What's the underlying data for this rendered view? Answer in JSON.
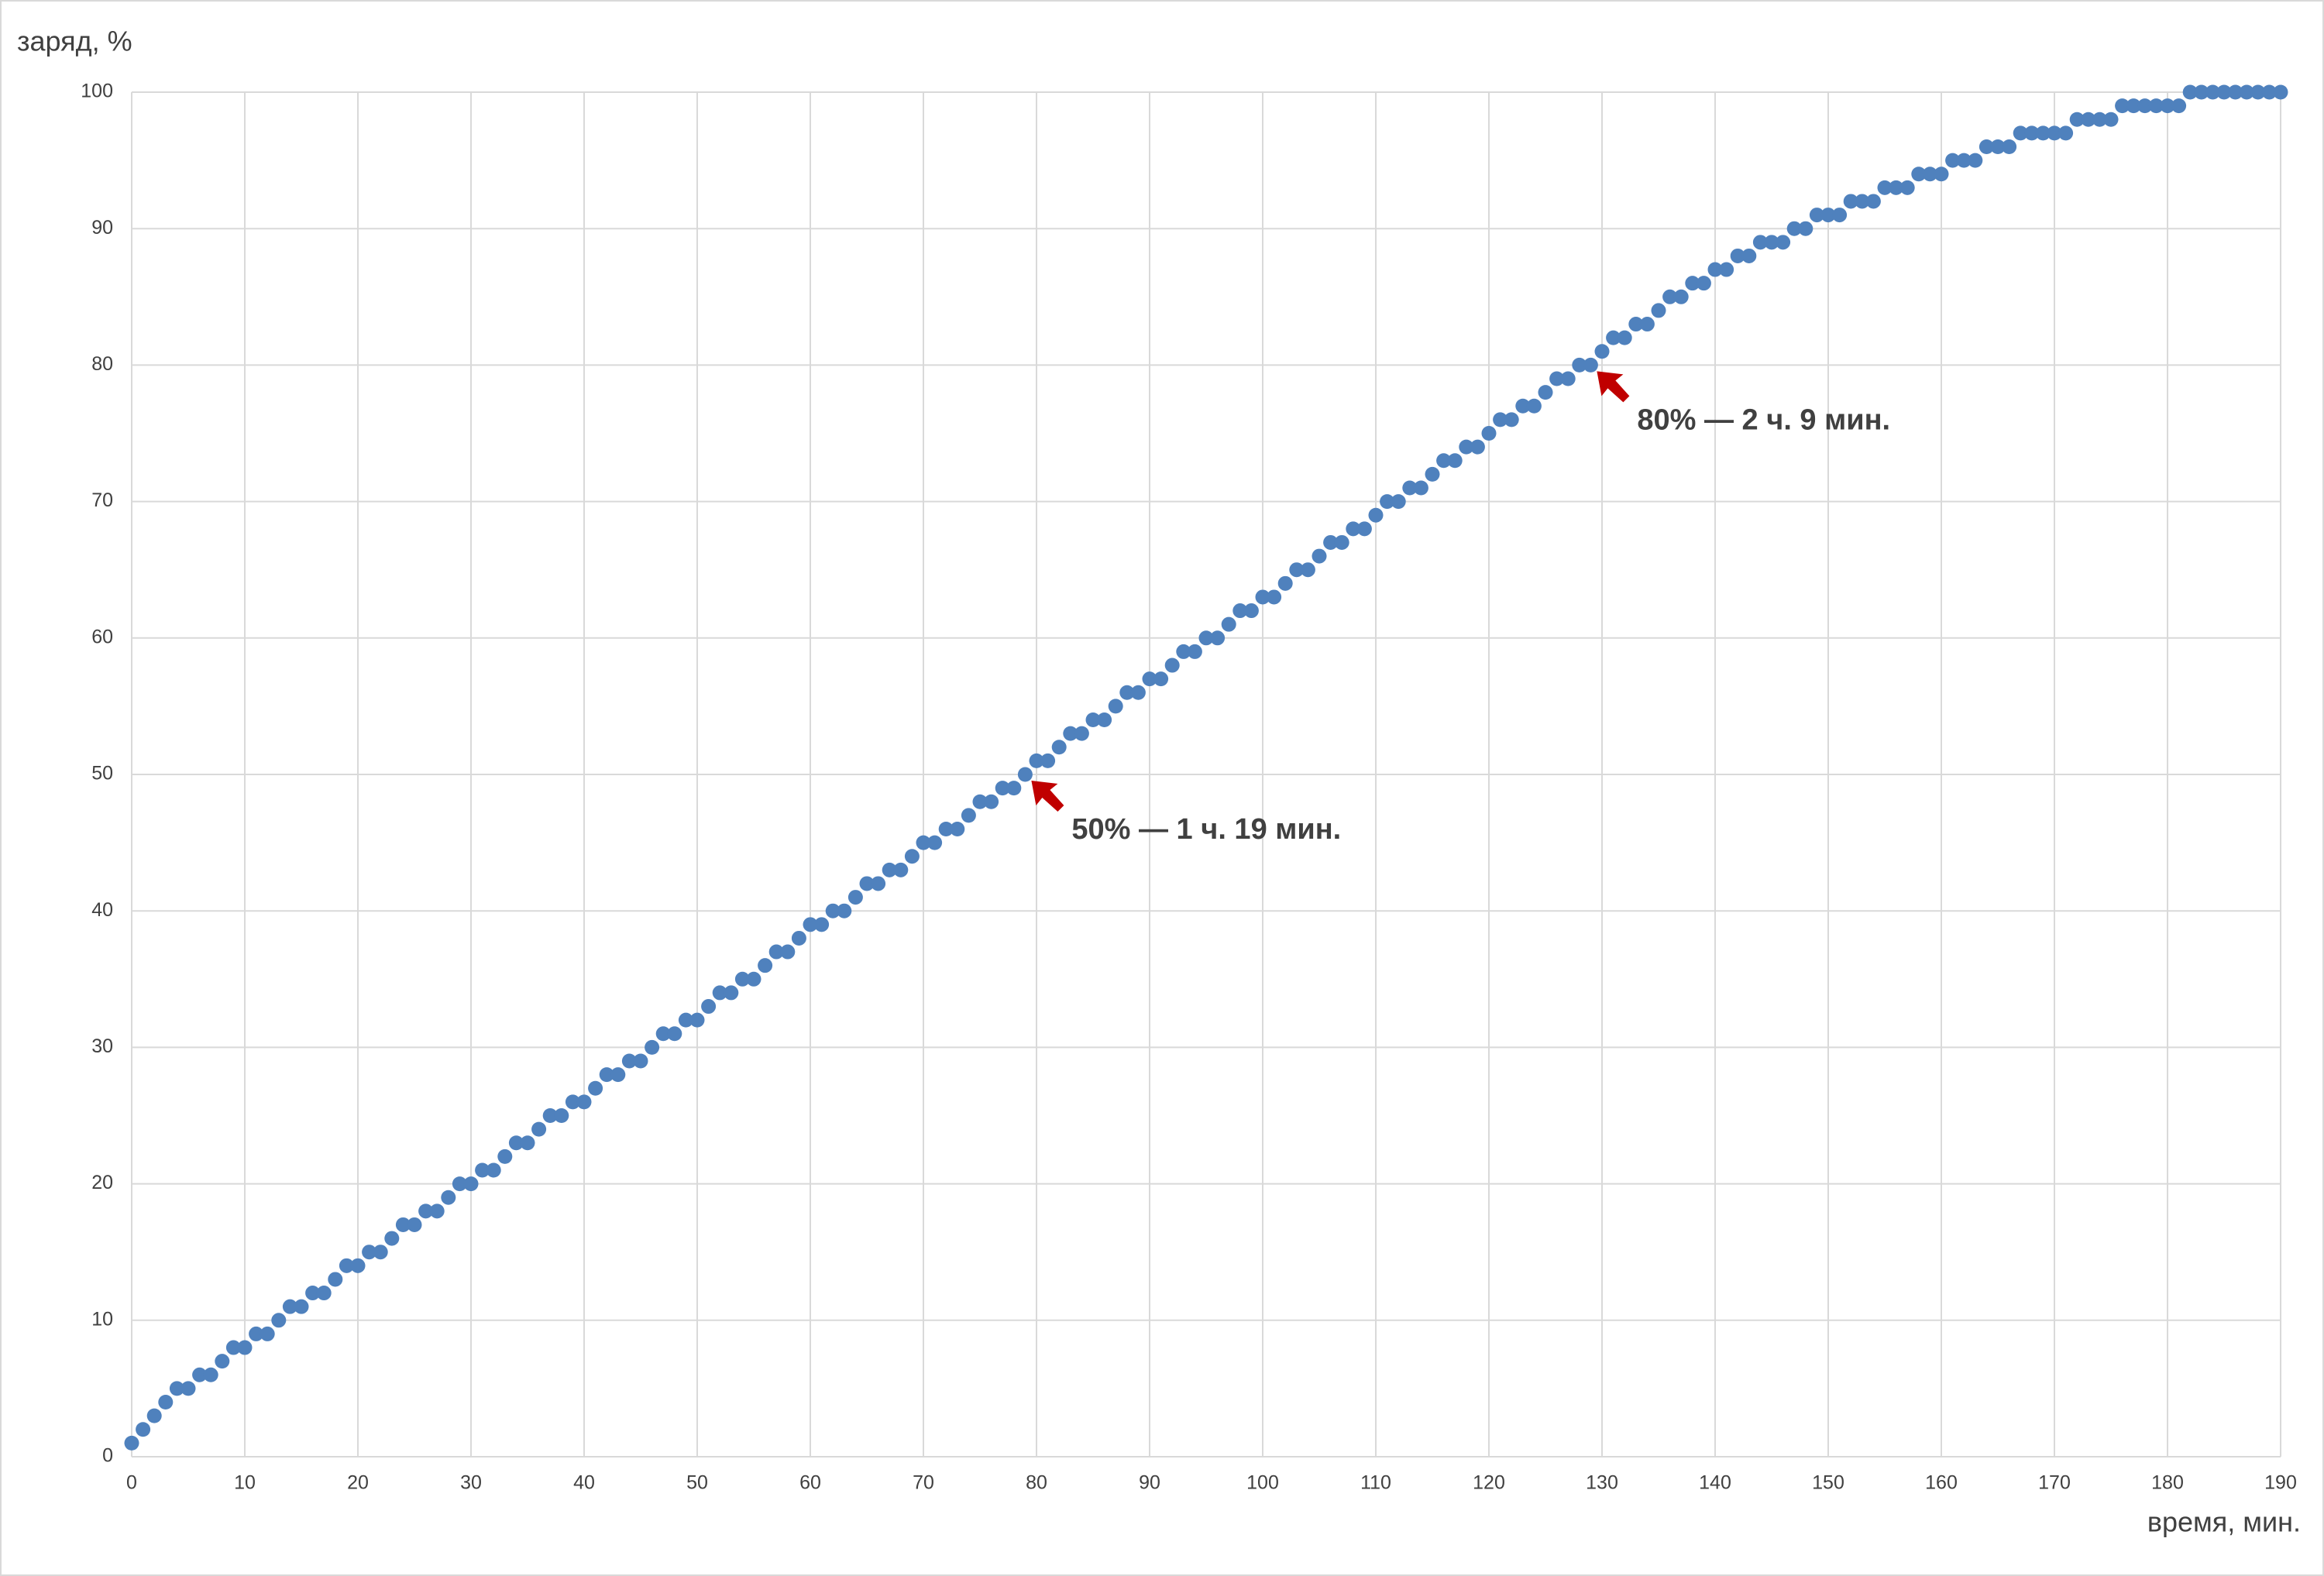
{
  "chart_data": {
    "type": "scatter",
    "y_label": "заряд, %",
    "x_label": "время, мин.",
    "series": [
      {
        "color": "#4f81bd",
        "x": [
          0,
          1,
          2,
          3,
          4,
          5,
          6,
          7,
          8,
          9,
          10,
          11,
          12,
          13,
          14,
          15,
          16,
          17,
          18,
          19,
          20,
          21,
          22,
          23,
          24,
          25,
          26,
          27,
          28,
          29,
          30,
          31,
          32,
          33,
          34,
          35,
          36,
          37,
          38,
          39,
          40,
          41,
          42,
          43,
          44,
          45,
          46,
          47,
          48,
          49,
          50,
          51,
          52,
          53,
          54,
          55,
          56,
          57,
          58,
          59,
          60,
          61,
          62,
          63,
          64,
          65,
          66,
          67,
          68,
          69,
          70,
          71,
          72,
          73,
          74,
          75,
          76,
          77,
          78,
          79,
          80,
          81,
          82,
          83,
          84,
          85,
          86,
          87,
          88,
          89,
          90,
          91,
          92,
          93,
          94,
          95,
          96,
          97,
          98,
          99,
          100,
          101,
          102,
          103,
          104,
          105,
          106,
          107,
          108,
          109,
          110,
          111,
          112,
          113,
          114,
          115,
          116,
          117,
          118,
          119,
          120,
          121,
          122,
          123,
          124,
          125,
          126,
          127,
          128,
          129,
          130,
          131,
          132,
          133,
          134,
          135,
          136,
          137,
          138,
          139,
          140,
          141,
          142,
          143,
          144,
          145,
          146,
          147,
          148,
          149,
          150,
          151,
          152,
          153,
          154,
          155,
          156,
          157,
          158,
          159,
          160,
          161,
          162,
          163,
          164,
          165,
          166,
          167,
          168,
          169,
          170,
          171,
          172,
          173,
          174,
          175,
          176,
          177,
          178,
          179,
          180,
          181,
          182,
          183,
          184,
          185,
          186,
          187,
          188,
          189,
          190
        ],
        "values": [
          1,
          2,
          3,
          4,
          5,
          5,
          6,
          6,
          7,
          8,
          8,
          9,
          9,
          10,
          11,
          11,
          12,
          12,
          13,
          14,
          14,
          15,
          15,
          16,
          17,
          17,
          18,
          18,
          19,
          20,
          20,
          21,
          21,
          22,
          23,
          23,
          24,
          25,
          25,
          26,
          26,
          27,
          28,
          28,
          29,
          29,
          30,
          31,
          31,
          32,
          32,
          33,
          34,
          34,
          35,
          35,
          36,
          37,
          37,
          38,
          39,
          39,
          40,
          40,
          41,
          42,
          42,
          43,
          43,
          44,
          45,
          45,
          46,
          46,
          47,
          48,
          48,
          49,
          49,
          50,
          51,
          51,
          52,
          53,
          53,
          54,
          54,
          55,
          56,
          56,
          57,
          57,
          58,
          59,
          59,
          60,
          60,
          61,
          62,
          62,
          63,
          63,
          64,
          65,
          65,
          66,
          67,
          67,
          68,
          68,
          69,
          70,
          70,
          71,
          71,
          72,
          73,
          73,
          74,
          74,
          75,
          76,
          76,
          77,
          77,
          78,
          79,
          79,
          80,
          80,
          81,
          82,
          82,
          83,
          83,
          84,
          85,
          85,
          86,
          86,
          87,
          87,
          88,
          88,
          89,
          89,
          89,
          90,
          90,
          91,
          91,
          91,
          92,
          92,
          92,
          93,
          93,
          93,
          94,
          94,
          94,
          95,
          95,
          95,
          96,
          96,
          96,
          97,
          97,
          97,
          97,
          97,
          98,
          98,
          98,
          98,
          99,
          99,
          99,
          99,
          99,
          99,
          100,
          100,
          100,
          100,
          100,
          100,
          100,
          100,
          100
        ]
      }
    ],
    "xlim": [
      0,
      190
    ],
    "ylim": [
      0,
      100
    ],
    "xticks": [
      0,
      10,
      20,
      30,
      40,
      50,
      60,
      70,
      80,
      90,
      100,
      110,
      120,
      130,
      140,
      150,
      160,
      170,
      180,
      190
    ],
    "yticks": [
      0,
      10,
      20,
      30,
      40,
      50,
      60,
      70,
      80,
      90,
      100
    ],
    "grid": true,
    "annotations": [
      {
        "text": "50% — 1 ч. 19 мин.",
        "x": 79,
        "y": 50,
        "color": "#c00000"
      },
      {
        "text": "80% — 2 ч. 9 мин.",
        "x": 129,
        "y": 80,
        "color": "#c00000"
      }
    ]
  }
}
